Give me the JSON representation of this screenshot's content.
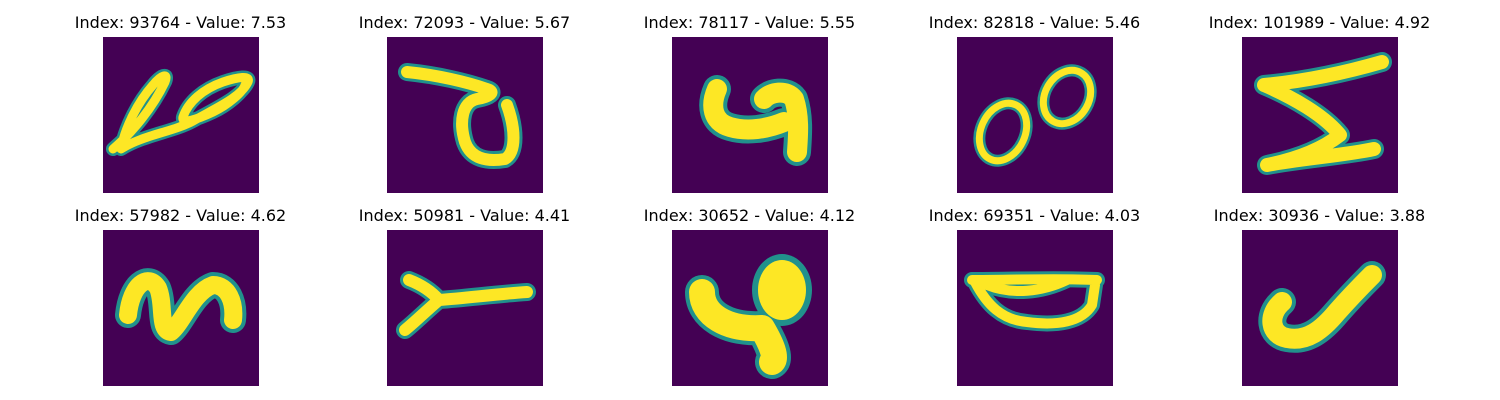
{
  "figure": {
    "colors": {
      "background": "#440154",
      "stroke_core": "#fde725",
      "stroke_edge": "#35b779",
      "stroke_halo": "#21918c"
    },
    "panels": [
      {
        "title": "Index: 93764 - Value: 7.53",
        "index": 93764,
        "value": 7.53
      },
      {
        "title": "Index: 72093 - Value: 5.67",
        "index": 72093,
        "value": 5.67
      },
      {
        "title": "Index: 78117 - Value: 5.55",
        "index": 78117,
        "value": 5.55
      },
      {
        "title": "Index: 82818 - Value: 5.46",
        "index": 82818,
        "value": 5.46
      },
      {
        "title": "Index: 101989 - Value: 4.92",
        "index": 101989,
        "value": 4.92
      },
      {
        "title": "Index: 57982 - Value: 4.62",
        "index": 57982,
        "value": 4.62
      },
      {
        "title": "Index: 50981 - Value: 4.41",
        "index": 50981,
        "value": 4.41
      },
      {
        "title": "Index: 30652 - Value: 4.12",
        "index": 30652,
        "value": 4.12
      },
      {
        "title": "Index: 69351 - Value: 4.03",
        "index": 69351,
        "value": 4.03
      },
      {
        "title": "Index: 30936 - Value: 3.88",
        "index": 30936,
        "value": 3.88
      }
    ]
  }
}
